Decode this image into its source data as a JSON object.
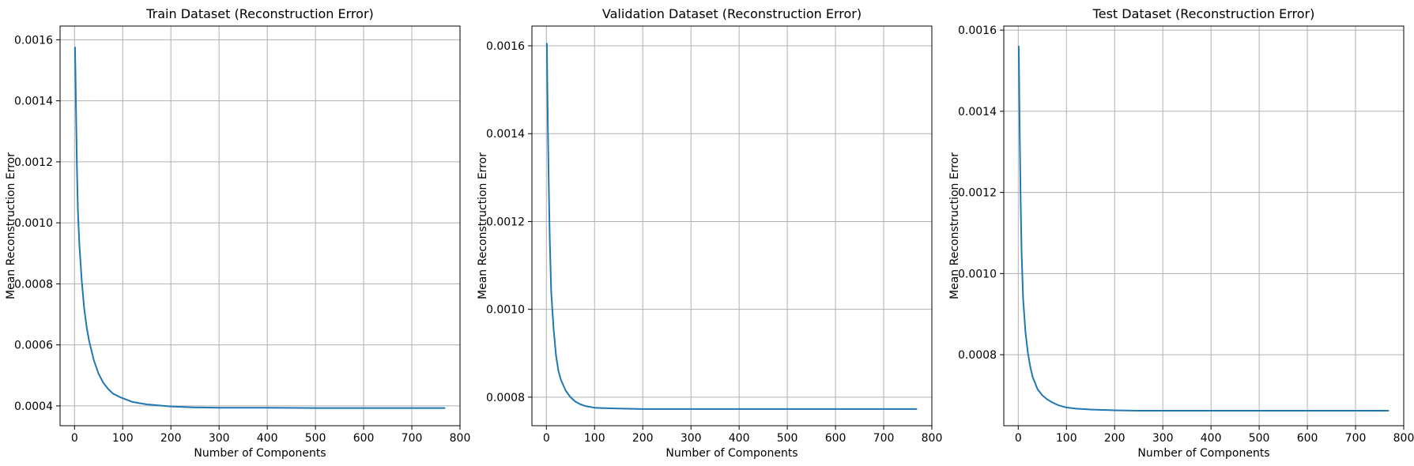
{
  "charts": [
    {
      "title": "Train Dataset (Reconstruction Error)",
      "xlabel": "Number of Components",
      "ylabel": "Mean Reconstruction Error",
      "x_ticks": [
        "0",
        "100",
        "200",
        "300",
        "400",
        "500",
        "600",
        "700",
        "800"
      ],
      "y_ticks": [
        "0.0004",
        "0.0006",
        "0.0008",
        "0.0010",
        "0.0012",
        "0.0014",
        "0.0016"
      ]
    },
    {
      "title": "Validation Dataset (Reconstruction Error)",
      "xlabel": "Number of Components",
      "ylabel": "Mean Reconstruction Error",
      "x_ticks": [
        "0",
        "100",
        "200",
        "300",
        "400",
        "500",
        "600",
        "700",
        "800"
      ],
      "y_ticks": [
        "0.0008",
        "0.0010",
        "0.0012",
        "0.0014",
        "0.0016"
      ]
    },
    {
      "title": "Test Dataset (Reconstruction Error)",
      "xlabel": "Number of Components",
      "ylabel": "Mean Reconstruction Error",
      "x_ticks": [
        "0",
        "100",
        "200",
        "300",
        "400",
        "500",
        "600",
        "700",
        "800"
      ],
      "y_ticks": [
        "0.0008",
        "0.0010",
        "0.0012",
        "0.0014",
        "0.0016"
      ]
    }
  ],
  "chart_data": [
    {
      "type": "line",
      "title": "Train Dataset (Reconstruction Error)",
      "xlabel": "Number of Components",
      "ylabel": "Mean Reconstruction Error",
      "xlim": [
        -30,
        800
      ],
      "ylim": [
        0.000335,
        0.001645
      ],
      "grid": true,
      "line_color": "#1f77b4",
      "series": [
        {
          "x": [
            1,
            2,
            3,
            5,
            7,
            10,
            15,
            20,
            25,
            30,
            40,
            50,
            60,
            70,
            80,
            90,
            100,
            120,
            150,
            200,
            250,
            300,
            400,
            500,
            600,
            700,
            768
          ],
          "values": [
            0.001575,
            0.00149,
            0.00138,
            0.00118,
            0.00104,
            0.00093,
            0.00081,
            0.00072,
            0.00066,
            0.000615,
            0.00055,
            0.000505,
            0.000475,
            0.000455,
            0.00044,
            0.000432,
            0.000425,
            0.000413,
            0.000405,
            0.000398,
            0.000395,
            0.000394,
            0.000394,
            0.000393,
            0.000393,
            0.000393,
            0.000393
          ]
        }
      ]
    },
    {
      "type": "line",
      "title": "Validation Dataset (Reconstruction Error)",
      "xlabel": "Number of Components",
      "ylabel": "Mean Reconstruction Error",
      "xlim": [
        -30,
        800
      ],
      "ylim": [
        0.000735,
        0.001645
      ],
      "grid": true,
      "line_color": "#1f77b4",
      "series": [
        {
          "x": [
            1,
            2,
            3,
            5,
            7,
            10,
            15,
            20,
            25,
            30,
            40,
            50,
            60,
            70,
            80,
            90,
            100,
            120,
            150,
            200,
            250,
            300,
            400,
            500,
            600,
            700,
            768
          ],
          "values": [
            0.001605,
            0.00151,
            0.00142,
            0.00128,
            0.00116,
            0.00104,
            0.000955,
            0.000895,
            0.00086,
            0.00084,
            0.000815,
            0.0008,
            0.00079,
            0.000784,
            0.00078,
            0.000778,
            0.000776,
            0.000775,
            0.000774,
            0.000773,
            0.000773,
            0.000773,
            0.000773,
            0.000773,
            0.000773,
            0.000773,
            0.000773
          ]
        }
      ]
    },
    {
      "type": "line",
      "title": "Test Dataset (Reconstruction Error)",
      "xlabel": "Number of Components",
      "ylabel": "Mean Reconstruction Error",
      "xlim": [
        -30,
        800
      ],
      "ylim": [
        0.000625,
        0.00161
      ],
      "grid": true,
      "line_color": "#1f77b4",
      "series": [
        {
          "x": [
            1,
            2,
            3,
            5,
            7,
            10,
            15,
            20,
            25,
            30,
            40,
            50,
            60,
            70,
            80,
            90,
            100,
            120,
            150,
            200,
            250,
            300,
            400,
            500,
            600,
            700,
            768
          ],
          "values": [
            0.00156,
            0.00146,
            0.00135,
            0.00118,
            0.00105,
            0.00094,
            0.000855,
            0.000805,
            0.00077,
            0.000745,
            0.000715,
            0.0007,
            0.00069,
            0.000683,
            0.000677,
            0.000673,
            0.00067,
            0.000667,
            0.000665,
            0.000663,
            0.000662,
            0.000662,
            0.000662,
            0.000662,
            0.000662,
            0.000662,
            0.000662
          ]
        }
      ]
    }
  ]
}
